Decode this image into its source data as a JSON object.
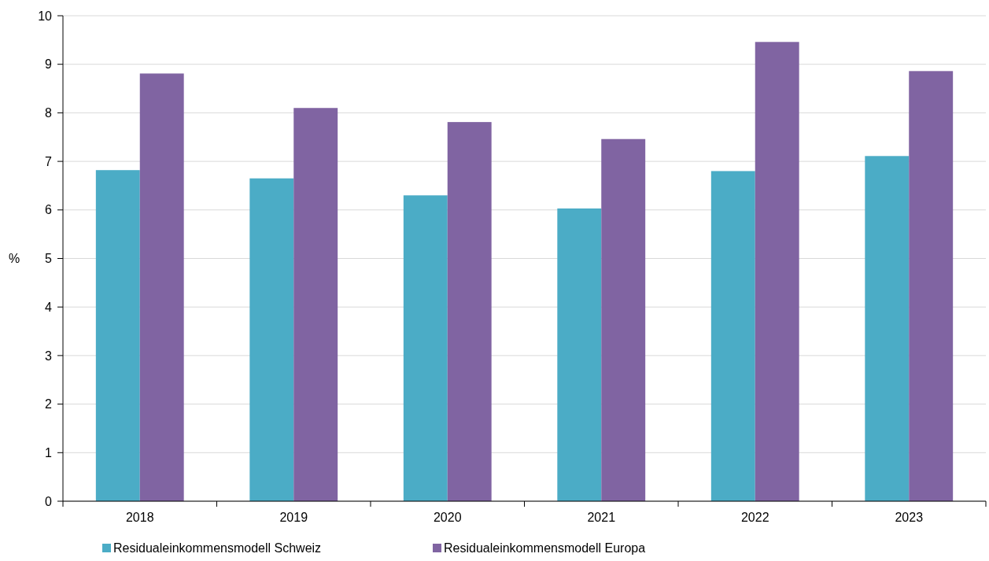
{
  "chart_data": {
    "type": "bar",
    "ylabel": "%",
    "categories": [
      "2018",
      "2019",
      "2020",
      "2021",
      "2022",
      "2023"
    ],
    "series": [
      {
        "name": "Residualeinkommensmodell Schweiz",
        "color": "#4bacc6",
        "values": [
          6.82,
          6.65,
          6.3,
          6.03,
          6.8,
          7.11
        ]
      },
      {
        "name": "Residualeinkommensmodell Europa",
        "color": "#8064a2",
        "values": [
          8.81,
          8.1,
          7.81,
          7.46,
          9.46,
          8.86
        ]
      }
    ],
    "ylim": [
      0,
      10
    ],
    "yticks": [
      0,
      1,
      2,
      3,
      4,
      5,
      6,
      7,
      8,
      9,
      10
    ],
    "grid": "y",
    "legend": "bottom"
  }
}
